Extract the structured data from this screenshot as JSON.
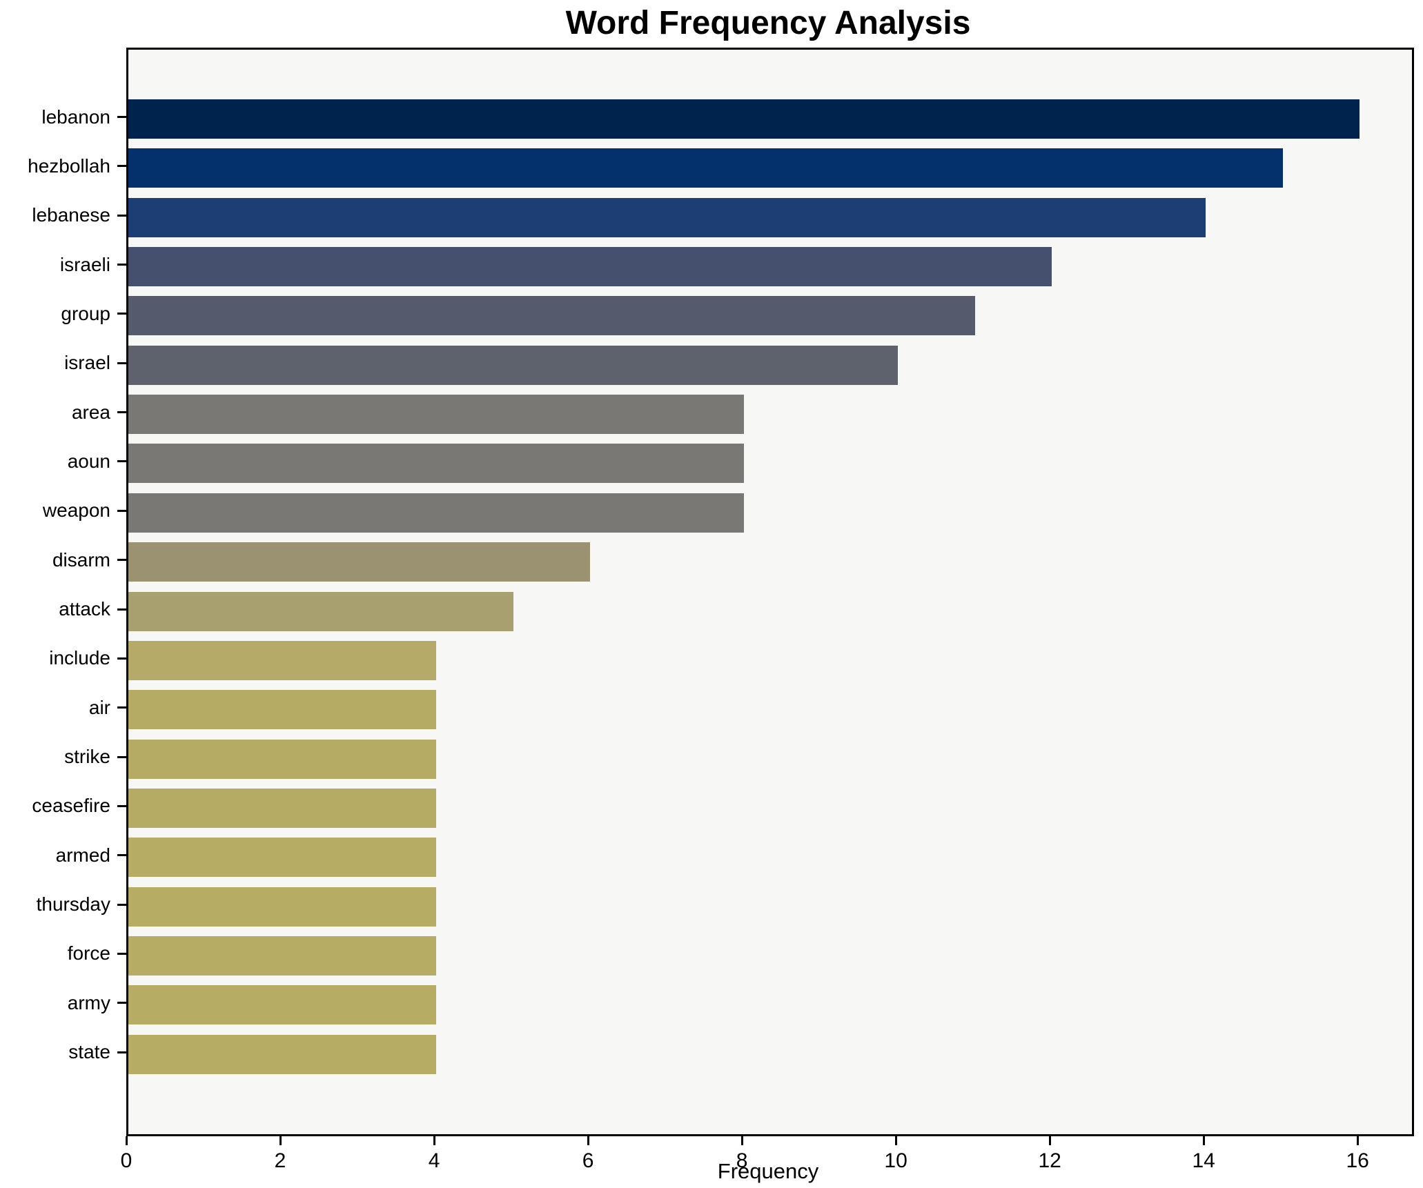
{
  "title": "Word Frequency Analysis",
  "x_axis": {
    "label": "Frequency",
    "tick_labels": [
      "0",
      "2",
      "4",
      "6",
      "8",
      "10",
      "12",
      "14",
      "16"
    ]
  },
  "chart_data": {
    "type": "bar",
    "orientation": "horizontal",
    "title": "Word Frequency Analysis",
    "xlabel": "Frequency",
    "ylabel": "",
    "categories": [
      "lebanon",
      "hezbollah",
      "lebanese",
      "israeli",
      "group",
      "israel",
      "area",
      "aoun",
      "weapon",
      "disarm",
      "attack",
      "include",
      "air",
      "strike",
      "ceasefire",
      "armed",
      "thursday",
      "force",
      "army",
      "state"
    ],
    "values": [
      16,
      15,
      14,
      12,
      11,
      10,
      8,
      8,
      8,
      6,
      5,
      4,
      4,
      4,
      4,
      4,
      4,
      4,
      4,
      4
    ],
    "bar_colors": [
      "#00234e",
      "#04316b",
      "#1d3d75",
      "#44506e",
      "#555b6d",
      "#5e626c",
      "#7a7875",
      "#7a7875",
      "#7a7875",
      "#9a9270",
      "#a8a06e",
      "#b5aa67",
      "#b6ab65",
      "#b6ab64",
      "#b6ab64",
      "#b7ac63",
      "#b7ac63",
      "#b7ac63",
      "#b7ac63",
      "#b7ac63"
    ],
    "xlim": [
      0,
      16.68
    ],
    "xticks": [
      0,
      2,
      4,
      6,
      8,
      10,
      12,
      14,
      16
    ],
    "grid": false,
    "legend": null,
    "colormap": "cividis",
    "plot_background": "#f7f7f6",
    "figure_background": "#ffffff",
    "spine_color": "#000000",
    "tick_color": "#000000",
    "text_color": "#000000"
  }
}
